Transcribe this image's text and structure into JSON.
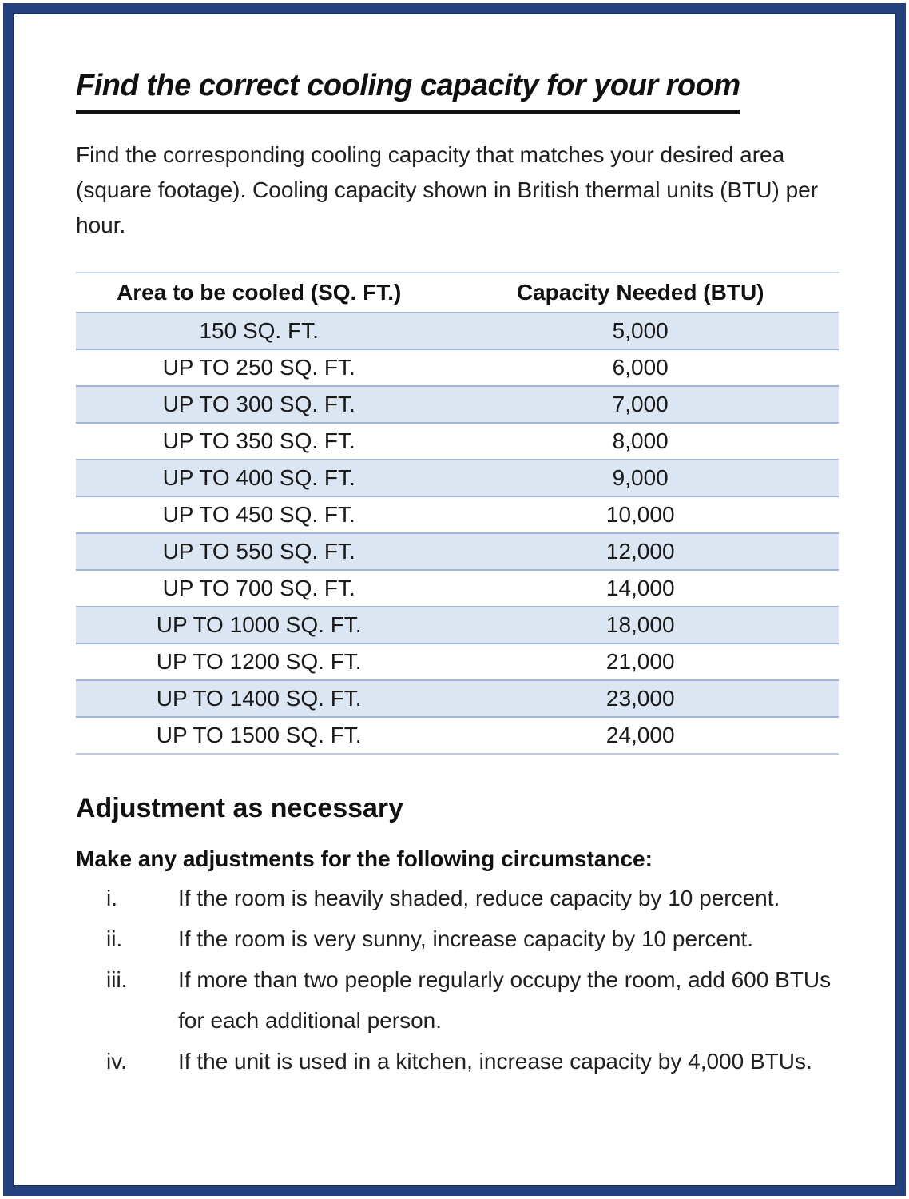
{
  "page": {
    "title": "Find the correct cooling capacity for your room",
    "intro": "Find the corresponding cooling capacity that matches your desired area (square footage). Cooling capacity shown in British thermal units (BTU) per hour."
  },
  "table": {
    "headers": [
      "Area to be cooled (SQ. FT.)",
      "Capacity Needed (BTU)"
    ],
    "rows": [
      [
        "150 SQ. FT.",
        "5,000"
      ],
      [
        "UP TO 250 SQ. FT.",
        "6,000"
      ],
      [
        "UP TO 300 SQ. FT.",
        "7,000"
      ],
      [
        "UP TO 350 SQ. FT.",
        "8,000"
      ],
      [
        "UP TO 400 SQ. FT.",
        "9,000"
      ],
      [
        "UP TO 450 SQ. FT.",
        "10,000"
      ],
      [
        "UP TO 550 SQ. FT.",
        "12,000"
      ],
      [
        "UP TO 700 SQ. FT.",
        "14,000"
      ],
      [
        "UP TO 1000 SQ. FT.",
        "18,000"
      ],
      [
        "UP TO 1200 SQ. FT.",
        "21,000"
      ],
      [
        "UP TO 1400 SQ. FT.",
        "23,000"
      ],
      [
        "UP TO 1500 SQ. FT.",
        "24,000"
      ]
    ]
  },
  "adjustments": {
    "heading": "Adjustment as necessary",
    "lead": "Make any adjustments for the following circumstance:",
    "items": [
      {
        "marker": "i.",
        "text": "If the room is heavily shaded, reduce capacity by 10 percent."
      },
      {
        "marker": "ii.",
        "text": "If the room is very sunny, increase capacity by 10 percent."
      },
      {
        "marker": "iii.",
        "text": "If more than two people regularly occupy the room, add 600 BTUs for each additional person."
      },
      {
        "marker": "iv.",
        "text": "If the unit is used in a kitchen, increase capacity by 4,000 BTUs."
      }
    ]
  },
  "colors": {
    "frame_navy": "#24417e",
    "frame_inner": "#1a2c50",
    "row_shade": "#dce6f2",
    "rule_blue": "#9fb6d2",
    "text": "#1c1c1c"
  }
}
